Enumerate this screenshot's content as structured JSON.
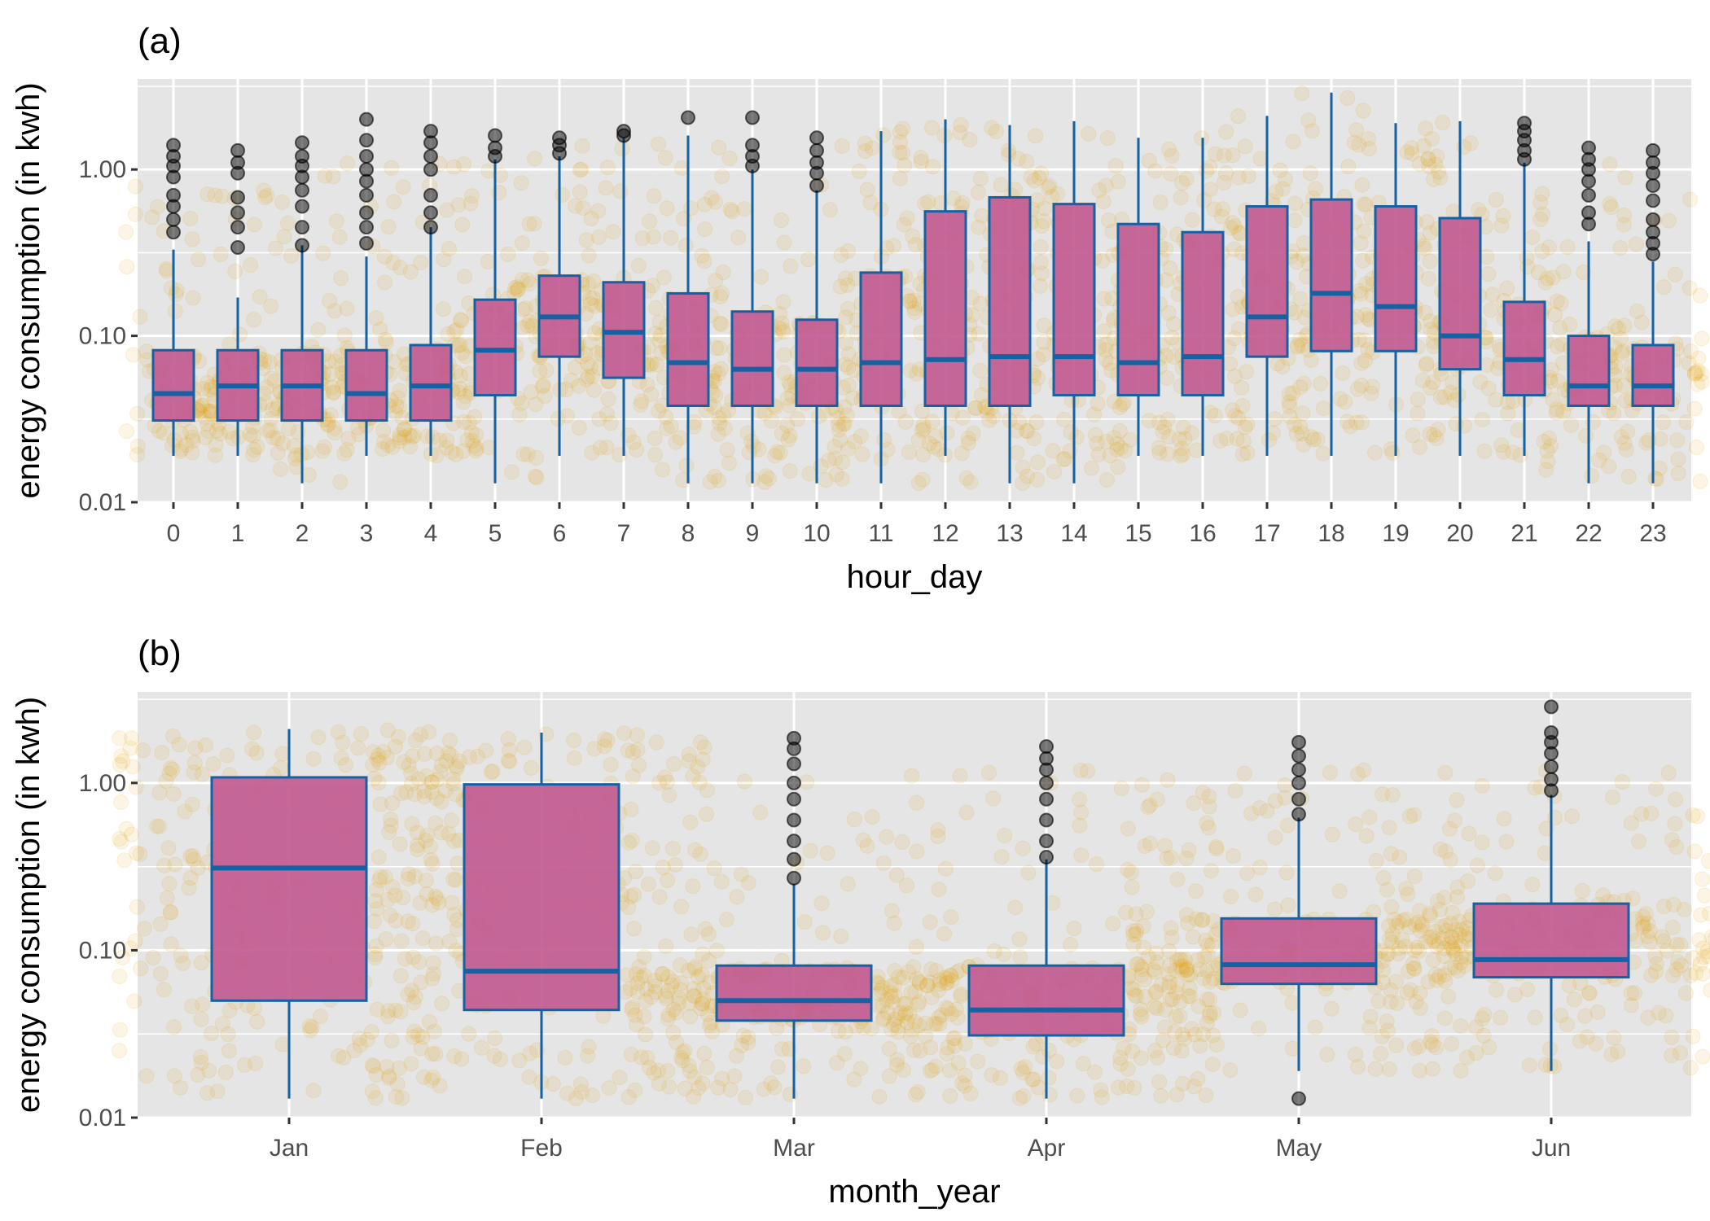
{
  "chart_data": [
    {
      "type": "box",
      "panel_tag": "(a)",
      "xlabel": "hour_day",
      "ylabel": "energy consumption (in kwh)",
      "yscale": "log10",
      "ylim": [
        0.01,
        3.5
      ],
      "yticks": [
        0.01,
        0.1,
        1.0
      ],
      "ytick_labels": [
        "0.01",
        "0.10",
        "1.00"
      ],
      "grid": true,
      "categories": [
        "0",
        "1",
        "2",
        "3",
        "4",
        "5",
        "6",
        "7",
        "8",
        "9",
        "10",
        "11",
        "12",
        "13",
        "14",
        "15",
        "16",
        "17",
        "18",
        "19",
        "20",
        "21",
        "22",
        "23"
      ],
      "boxes": [
        {
          "q1": 0.031,
          "median": 0.045,
          "q3": 0.082,
          "whisker_low": 0.019,
          "whisker_high": 0.33,
          "outliers": [
            0.42,
            0.5,
            0.6,
            0.7,
            0.9,
            1.05,
            1.2,
            1.4
          ]
        },
        {
          "q1": 0.031,
          "median": 0.05,
          "q3": 0.082,
          "whisker_low": 0.019,
          "whisker_high": 0.17,
          "outliers": [
            0.34,
            0.45,
            0.55,
            0.68,
            0.95,
            1.1,
            1.3
          ]
        },
        {
          "q1": 0.031,
          "median": 0.05,
          "q3": 0.082,
          "whisker_low": 0.013,
          "whisker_high": 0.35,
          "outliers": [
            0.35,
            0.45,
            0.6,
            0.75,
            0.9,
            1.05,
            1.2,
            1.45
          ]
        },
        {
          "q1": 0.031,
          "median": 0.045,
          "q3": 0.082,
          "whisker_low": 0.019,
          "whisker_high": 0.3,
          "outliers": [
            0.36,
            0.45,
            0.55,
            0.7,
            0.85,
            1.0,
            1.2,
            1.5,
            2.0
          ]
        },
        {
          "q1": 0.031,
          "median": 0.05,
          "q3": 0.088,
          "whisker_low": 0.019,
          "whisker_high": 0.45,
          "outliers": [
            0.45,
            0.55,
            0.7,
            1.0,
            1.2,
            1.45,
            1.7
          ]
        },
        {
          "q1": 0.044,
          "median": 0.082,
          "q3": 0.165,
          "whisker_low": 0.013,
          "whisker_high": 1.15,
          "outliers": [
            1.2,
            1.35,
            1.6
          ]
        },
        {
          "q1": 0.075,
          "median": 0.13,
          "q3": 0.23,
          "whisker_low": 0.019,
          "whisker_high": 1.2,
          "outliers": [
            1.25,
            1.4,
            1.55
          ]
        },
        {
          "q1": 0.056,
          "median": 0.105,
          "q3": 0.21,
          "whisker_low": 0.019,
          "whisker_high": 1.55,
          "outliers": [
            1.6,
            1.7
          ]
        },
        {
          "q1": 0.038,
          "median": 0.069,
          "q3": 0.18,
          "whisker_low": 0.013,
          "whisker_high": 1.6,
          "outliers": [
            2.05
          ]
        },
        {
          "q1": 0.038,
          "median": 0.063,
          "q3": 0.14,
          "whisker_low": 0.013,
          "whisker_high": 1.0,
          "outliers": [
            1.05,
            1.2,
            1.4,
            2.05
          ]
        },
        {
          "q1": 0.038,
          "median": 0.063,
          "q3": 0.125,
          "whisker_low": 0.013,
          "whisker_high": 0.75,
          "outliers": [
            0.8,
            0.95,
            1.1,
            1.3,
            1.55
          ]
        },
        {
          "q1": 0.038,
          "median": 0.069,
          "q3": 0.24,
          "whisker_low": 0.013,
          "whisker_high": 1.7,
          "outliers": []
        },
        {
          "q1": 0.038,
          "median": 0.072,
          "q3": 0.56,
          "whisker_low": 0.019,
          "whisker_high": 2.0,
          "outliers": []
        },
        {
          "q1": 0.038,
          "median": 0.075,
          "q3": 0.68,
          "whisker_low": 0.013,
          "whisker_high": 1.85,
          "outliers": []
        },
        {
          "q1": 0.044,
          "median": 0.075,
          "q3": 0.62,
          "whisker_low": 0.013,
          "whisker_high": 1.95,
          "outliers": []
        },
        {
          "q1": 0.044,
          "median": 0.069,
          "q3": 0.47,
          "whisker_low": 0.019,
          "whisker_high": 1.55,
          "outliers": []
        },
        {
          "q1": 0.044,
          "median": 0.075,
          "q3": 0.42,
          "whisker_low": 0.019,
          "whisker_high": 1.55,
          "outliers": []
        },
        {
          "q1": 0.075,
          "median": 0.13,
          "q3": 0.6,
          "whisker_low": 0.019,
          "whisker_high": 2.1,
          "outliers": []
        },
        {
          "q1": 0.081,
          "median": 0.18,
          "q3": 0.66,
          "whisker_low": 0.019,
          "whisker_high": 2.9,
          "outliers": []
        },
        {
          "q1": 0.081,
          "median": 0.15,
          "q3": 0.6,
          "whisker_low": 0.019,
          "whisker_high": 1.9,
          "outliers": []
        },
        {
          "q1": 0.063,
          "median": 0.1,
          "q3": 0.51,
          "whisker_low": 0.019,
          "whisker_high": 1.95,
          "outliers": []
        },
        {
          "q1": 0.044,
          "median": 0.072,
          "q3": 0.16,
          "whisker_low": 0.019,
          "whisker_high": 1.1,
          "outliers": [
            1.15,
            1.3,
            1.5,
            1.7,
            1.9
          ]
        },
        {
          "q1": 0.038,
          "median": 0.05,
          "q3": 0.1,
          "whisker_low": 0.013,
          "whisker_high": 0.37,
          "outliers": [
            0.47,
            0.55,
            0.7,
            0.85,
            1.0,
            1.15,
            1.35
          ]
        },
        {
          "q1": 0.038,
          "median": 0.05,
          "q3": 0.088,
          "whisker_low": 0.013,
          "whisker_high": 0.28,
          "outliers": [
            0.31,
            0.36,
            0.42,
            0.5,
            0.65,
            0.8,
            0.95,
            1.1,
            1.3
          ]
        }
      ]
    },
    {
      "type": "box",
      "panel_tag": "(b)",
      "xlabel": "month_year",
      "ylabel": "energy consumption (in kwh)",
      "yscale": "log10",
      "ylim": [
        0.01,
        3.5
      ],
      "yticks": [
        0.01,
        0.1,
        1.0
      ],
      "ytick_labels": [
        "0.01",
        "0.10",
        "1.00"
      ],
      "grid": true,
      "categories": [
        "Jan",
        "Feb",
        "Mar",
        "Apr",
        "May",
        "Jun"
      ],
      "boxes": [
        {
          "q1": 0.05,
          "median": 0.31,
          "q3": 1.08,
          "whisker_low": 0.013,
          "whisker_high": 2.1,
          "outliers": []
        },
        {
          "q1": 0.044,
          "median": 0.075,
          "q3": 0.98,
          "whisker_low": 0.013,
          "whisker_high": 2.0,
          "outliers": []
        },
        {
          "q1": 0.038,
          "median": 0.05,
          "q3": 0.081,
          "whisker_low": 0.013,
          "whisker_high": 0.25,
          "outliers": [
            0.27,
            0.35,
            0.45,
            0.6,
            0.8,
            1.0,
            1.3,
            1.6,
            1.85
          ]
        },
        {
          "q1": 0.031,
          "median": 0.044,
          "q3": 0.081,
          "whisker_low": 0.013,
          "whisker_high": 0.35,
          "outliers": [
            0.36,
            0.45,
            0.6,
            0.8,
            1.0,
            1.2,
            1.4,
            1.65
          ]
        },
        {
          "q1": 0.063,
          "median": 0.082,
          "q3": 0.155,
          "whisker_low": 0.019,
          "whisker_high": 0.62,
          "outliers": [
            0.013,
            0.65,
            0.8,
            1.0,
            1.2,
            1.45,
            1.75
          ]
        },
        {
          "q1": 0.069,
          "median": 0.088,
          "q3": 0.19,
          "whisker_low": 0.019,
          "whisker_high": 0.85,
          "outliers": [
            0.9,
            1.05,
            1.25,
            1.5,
            1.75,
            2.0,
            2.85
          ]
        }
      ]
    }
  ],
  "colors": {
    "panel_bg": "#e5e5e5",
    "grid": "#ffffff",
    "box_fill": "#c25b93",
    "box_stroke": "#1461a3",
    "jitter": "#e69f00",
    "outlier": "#000000",
    "tick_text": "#4d4d4d"
  }
}
